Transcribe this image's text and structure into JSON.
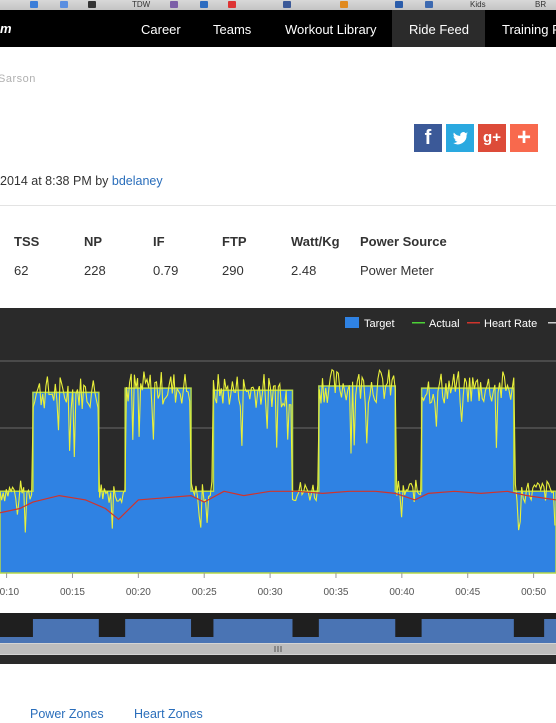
{
  "nav": {
    "brand": "m",
    "items": [
      {
        "label": "Career",
        "active": false
      },
      {
        "label": "Teams",
        "active": false
      },
      {
        "label": "Workout Library",
        "active": false
      },
      {
        "label": "Ride Feed",
        "active": true
      },
      {
        "label": "Training P",
        "active": false
      }
    ]
  },
  "bookmarks": [
    "TDW",
    "Kids",
    "BR"
  ],
  "post": {
    "author_partial": "Sarson",
    "date_partial": "2014 at 8:38 PM by ",
    "user": "bdelaney"
  },
  "share": [
    {
      "icon": "facebook-icon",
      "glyph": "f",
      "color": "#3b5998"
    },
    {
      "icon": "twitter-icon",
      "glyph": "t",
      "color": "#2aa9e0"
    },
    {
      "icon": "google-plus-icon",
      "glyph": "g+",
      "color": "#dd4b39"
    },
    {
      "icon": "addthis-plus-icon",
      "glyph": "+",
      "color": "#f8694d"
    }
  ],
  "stats": {
    "headers": [
      "TSS",
      "NP",
      "IF",
      "FTP",
      "Watt/Kg",
      "Power Source"
    ],
    "values": [
      "62",
      "228",
      "0.79",
      "290",
      "2.48",
      "Power Meter"
    ]
  },
  "tabs": [
    "Power Zones",
    "Heart Zones"
  ],
  "chart_data": {
    "type": "area",
    "legend": [
      {
        "name": "Target",
        "color": "#2f82e3"
      },
      {
        "name": "Actual",
        "color": "#4cd137"
      },
      {
        "name": "Heart Rate",
        "color": "#d0342c"
      }
    ],
    "legend_position": "top-right",
    "x_ticks": [
      "00:10",
      "00:15",
      "00:20",
      "00:25",
      "00:30",
      "00:35",
      "00:40",
      "00:45",
      "00:50"
    ],
    "x_tick_minutes": [
      10,
      15,
      20,
      25,
      30,
      35,
      40,
      45,
      50
    ],
    "x_range_minutes": [
      9.5,
      51.7
    ],
    "y_range_relative": [
      0,
      100
    ],
    "target_steps": [
      {
        "from": 9.5,
        "to": 12.0,
        "level": 38
      },
      {
        "from": 12.0,
        "to": 17.0,
        "level": 84
      },
      {
        "from": 17.0,
        "to": 19.0,
        "level": 38
      },
      {
        "from": 19.0,
        "to": 24.0,
        "level": 86
      },
      {
        "from": 24.0,
        "to": 25.7,
        "level": 38
      },
      {
        "from": 25.7,
        "to": 31.7,
        "level": 85
      },
      {
        "from": 31.7,
        "to": 33.7,
        "level": 38
      },
      {
        "from": 33.7,
        "to": 39.5,
        "level": 87
      },
      {
        "from": 39.5,
        "to": 41.5,
        "level": 38
      },
      {
        "from": 41.5,
        "to": 48.5,
        "level": 86
      },
      {
        "from": 48.5,
        "to": 51.7,
        "level": 38
      }
    ],
    "heart_rate": [
      [
        9.5,
        28
      ],
      [
        11,
        30
      ],
      [
        12,
        33
      ],
      [
        14,
        36
      ],
      [
        16,
        34
      ],
      [
        17.5,
        30
      ],
      [
        18.5,
        25
      ],
      [
        20,
        34
      ],
      [
        22,
        35
      ],
      [
        24,
        36
      ],
      [
        25,
        33
      ],
      [
        26.5,
        38
      ],
      [
        28,
        36
      ],
      [
        30,
        38
      ],
      [
        32,
        38
      ],
      [
        34,
        37
      ],
      [
        36,
        38
      ],
      [
        38,
        38
      ],
      [
        39.5,
        37
      ],
      [
        41,
        34
      ],
      [
        42,
        37
      ],
      [
        44,
        38
      ],
      [
        46,
        37
      ],
      [
        48,
        38
      ],
      [
        49.5,
        36
      ],
      [
        51.7,
        34
      ]
    ],
    "navigator_steps": [
      {
        "from": 12.0,
        "to": 17.0
      },
      {
        "from": 19.0,
        "to": 24.0
      },
      {
        "from": 25.7,
        "to": 31.7
      },
      {
        "from": 33.7,
        "to": 39.5
      },
      {
        "from": 41.5,
        "to": 48.5
      },
      {
        "from": 50.8,
        "to": 51.7
      }
    ]
  }
}
